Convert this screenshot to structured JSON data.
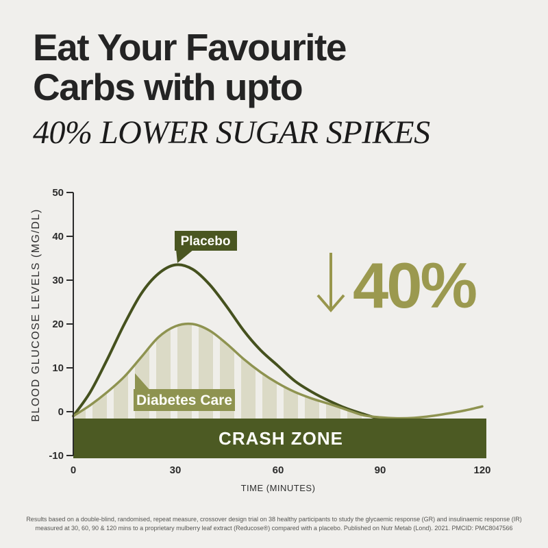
{
  "header": {
    "title_line1": "Eat Your Favourite",
    "title_line2": "Carbs with upto",
    "subtitle": "40% LOWER SUGAR SPIKES"
  },
  "colors": {
    "background": "#f0efec",
    "dark_olive": "#4a5621",
    "olive": "#8e9350",
    "gold_olive": "#9b994f",
    "area_beige": "#dbdac6",
    "area_stripe": "#efeee9",
    "axis": "#2b2b2b"
  },
  "chart_data": {
    "type": "line",
    "title": "",
    "xlabel": "TIME (MINUTES)",
    "ylabel": "BLOOD GLUCOSE LEVELS (MG/DL)",
    "xlim": [
      0,
      120
    ],
    "ylim": [
      -10,
      50
    ],
    "grid": false,
    "x_tick_labels": [
      "0",
      "30",
      "60",
      "90",
      "120"
    ],
    "y_tick_labels": [
      "50",
      "40",
      "30",
      "20",
      "10",
      "0",
      "-10"
    ],
    "x": [
      0,
      5,
      10,
      15,
      20,
      25,
      30,
      35,
      40,
      45,
      50,
      55,
      60,
      65,
      70,
      75,
      80,
      85,
      90,
      95,
      100,
      105,
      110,
      115,
      120
    ],
    "series": [
      {
        "name": "Placebo",
        "color": "#45511e",
        "peak": {
          "t": 30,
          "value": 33.5
        },
        "values": [
          -1,
          4.5,
          12,
          20,
          27,
          31.5,
          33.5,
          32.5,
          29,
          24,
          18.5,
          14,
          10.5,
          7,
          4.5,
          2.5,
          0.8,
          -0.5,
          -1.6,
          -1.9,
          -2,
          -2,
          -2,
          -2,
          -2
        ]
      },
      {
        "name": "Diabetes Care",
        "color": "#8e9350",
        "peak": {
          "t": 32,
          "value": 20
        },
        "area_fill": true,
        "area_until": 85,
        "values": [
          -1,
          1.5,
          4.5,
          8,
          12.5,
          17,
          19.5,
          20,
          18.5,
          15.5,
          12,
          9,
          6.5,
          4.5,
          3,
          1.8,
          0.5,
          -0.8,
          -1.3,
          -1.5,
          -1.4,
          -1,
          -0.4,
          0.3,
          1.2
        ]
      }
    ],
    "crash_zone_label": "CRASH ZONE",
    "reduction_label": "40%",
    "legend_position": "on-curve callouts"
  },
  "footer": {
    "line1": "Results based on a double-blind, randomised, repeat measure, crossover design trial on 38 healthy participants to study the glycaemic response (GR) and insulinaemic response (IR)",
    "line2": "measured at 30, 60, 90 & 120 mins to a proprietary mulberry leaf extract (Reducose®) compared with a placebo. Published on Nutr Metab (Lond). 2021. PMCID: PMC8047566"
  }
}
